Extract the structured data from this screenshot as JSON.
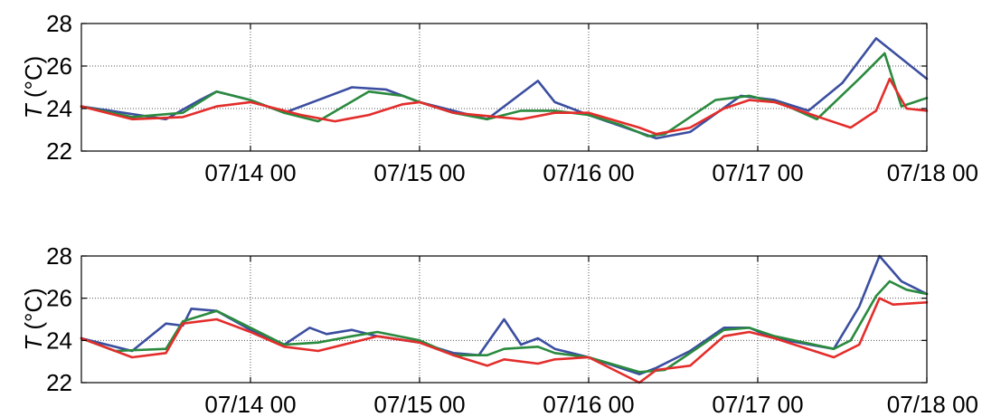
{
  "chart_data": [
    {
      "type": "line",
      "title": "",
      "xlabel": "",
      "ylabel": "T (°C)",
      "ylabel_var": "T",
      "ylabel_unit": " (°C)",
      "ylim": [
        22,
        28
      ],
      "yticks": [
        22,
        24,
        26,
        28
      ],
      "xlim": [
        "07/13 00",
        "07/18 00"
      ],
      "xticks": [
        "07/14 00",
        "07/15 00",
        "07/16 00",
        "07/17 00",
        "07/18 00"
      ],
      "grid": true,
      "legend": "none",
      "series": [
        {
          "color": "#3b4ea0",
          "x": [
            0,
            0.5,
            0.7,
            0.8,
            1,
            1.2,
            1.6,
            1.8,
            2,
            2.2,
            2.4,
            2.7,
            2.8,
            3,
            3.4,
            3.6,
            3.9,
            4.1,
            4.3,
            4.5,
            4.7,
            5
          ],
          "y": [
            24.1,
            23.5,
            24.4,
            24.8,
            24.4,
            23.8,
            25.0,
            24.9,
            24.3,
            23.9,
            23.5,
            25.3,
            24.3,
            23.7,
            22.6,
            22.9,
            24.6,
            24.4,
            23.9,
            25.2,
            27.3,
            25.4
          ]
        },
        {
          "color": "#2a8a3e",
          "x": [
            0,
            0.3,
            0.6,
            0.8,
            1,
            1.2,
            1.4,
            1.7,
            1.9,
            2,
            2.2,
            2.4,
            2.6,
            2.8,
            3,
            3.2,
            3.35,
            3.45,
            3.6,
            3.75,
            3.95,
            4.15,
            4.35,
            4.6,
            4.75,
            4.85,
            5
          ],
          "y": [
            24.1,
            23.6,
            23.8,
            24.8,
            24.4,
            23.8,
            23.4,
            24.8,
            24.6,
            24.3,
            23.8,
            23.5,
            23.9,
            23.9,
            23.7,
            23.2,
            22.7,
            22.8,
            23.6,
            24.4,
            24.6,
            24.2,
            23.5,
            25.4,
            26.6,
            24.1,
            24.5
          ]
        },
        {
          "color": "#e32d2b",
          "x": [
            0,
            0.3,
            0.6,
            0.8,
            1,
            1.3,
            1.5,
            1.7,
            1.9,
            2,
            2.2,
            2.6,
            2.8,
            3,
            3.3,
            3.4,
            3.6,
            3.8,
            3.95,
            4.1,
            4.4,
            4.55,
            4.7,
            4.78,
            4.88,
            5
          ],
          "y": [
            24.1,
            23.5,
            23.6,
            24.1,
            24.3,
            23.7,
            23.4,
            23.7,
            24.2,
            24.3,
            23.8,
            23.5,
            23.8,
            23.8,
            23.1,
            22.8,
            23.1,
            24.0,
            24.4,
            24.3,
            23.5,
            23.1,
            23.9,
            25.4,
            24.0,
            23.9
          ]
        }
      ]
    },
    {
      "type": "line",
      "title": "",
      "xlabel": "",
      "ylabel": "T (°C)",
      "ylabel_var": "T",
      "ylabel_unit": " (°C)",
      "ylim": [
        22,
        28
      ],
      "yticks": [
        22,
        24,
        26,
        28
      ],
      "xlim": [
        "07/13 00",
        "07/18 00"
      ],
      "xticks": [
        "07/14 00",
        "07/15 00",
        "07/16 00",
        "07/17 00",
        "07/18 00"
      ],
      "grid": true,
      "legend": "none",
      "series": [
        {
          "color": "#3b4ea0",
          "x": [
            0,
            0.3,
            0.5,
            0.6,
            0.65,
            0.8,
            1,
            1.2,
            1.35,
            1.45,
            1.6,
            1.75,
            2,
            2.2,
            2.35,
            2.5,
            2.6,
            2.7,
            2.8,
            3,
            3.3,
            3.4,
            3.6,
            3.8,
            3.95,
            4.1,
            4.45,
            4.6,
            4.72,
            4.85,
            5
          ],
          "y": [
            24.1,
            23.5,
            24.8,
            24.7,
            25.5,
            25.4,
            24.5,
            23.8,
            24.6,
            24.3,
            24.5,
            24.2,
            23.9,
            23.4,
            23.3,
            25.0,
            23.8,
            24.1,
            23.6,
            23.2,
            22.4,
            22.7,
            23.5,
            24.6,
            24.6,
            24.1,
            23.6,
            25.6,
            28.0,
            26.8,
            26.2
          ]
        },
        {
          "color": "#2a8a3e",
          "x": [
            0,
            0.2,
            0.5,
            0.6,
            0.8,
            1,
            1.2,
            1.4,
            1.6,
            1.75,
            2,
            2.2,
            2.4,
            2.5,
            2.7,
            2.8,
            3,
            3.3,
            3.45,
            3.6,
            3.8,
            3.95,
            4.1,
            4.45,
            4.55,
            4.7,
            4.78,
            4.88,
            5
          ],
          "y": [
            24.1,
            23.5,
            23.6,
            24.9,
            25.4,
            24.6,
            23.8,
            23.9,
            24.2,
            24.4,
            24.0,
            23.3,
            23.3,
            23.6,
            23.7,
            23.4,
            23.2,
            22.5,
            22.6,
            23.4,
            24.5,
            24.6,
            24.2,
            23.6,
            24.0,
            26.1,
            26.8,
            26.4,
            26.2
          ]
        },
        {
          "color": "#e32d2b",
          "x": [
            0,
            0.3,
            0.5,
            0.6,
            0.8,
            1,
            1.2,
            1.4,
            1.6,
            1.75,
            2,
            2.2,
            2.4,
            2.5,
            2.7,
            2.8,
            3,
            3.3,
            3.4,
            3.6,
            3.8,
            3.95,
            4.1,
            4.45,
            4.6,
            4.72,
            4.8,
            5
          ],
          "y": [
            24.1,
            23.2,
            23.4,
            24.8,
            25.0,
            24.4,
            23.7,
            23.5,
            23.9,
            24.2,
            23.9,
            23.3,
            22.8,
            23.1,
            22.9,
            23.1,
            23.2,
            22.0,
            22.6,
            22.8,
            24.2,
            24.4,
            24.1,
            23.2,
            23.8,
            26.0,
            25.7,
            25.8
          ]
        }
      ]
    }
  ]
}
